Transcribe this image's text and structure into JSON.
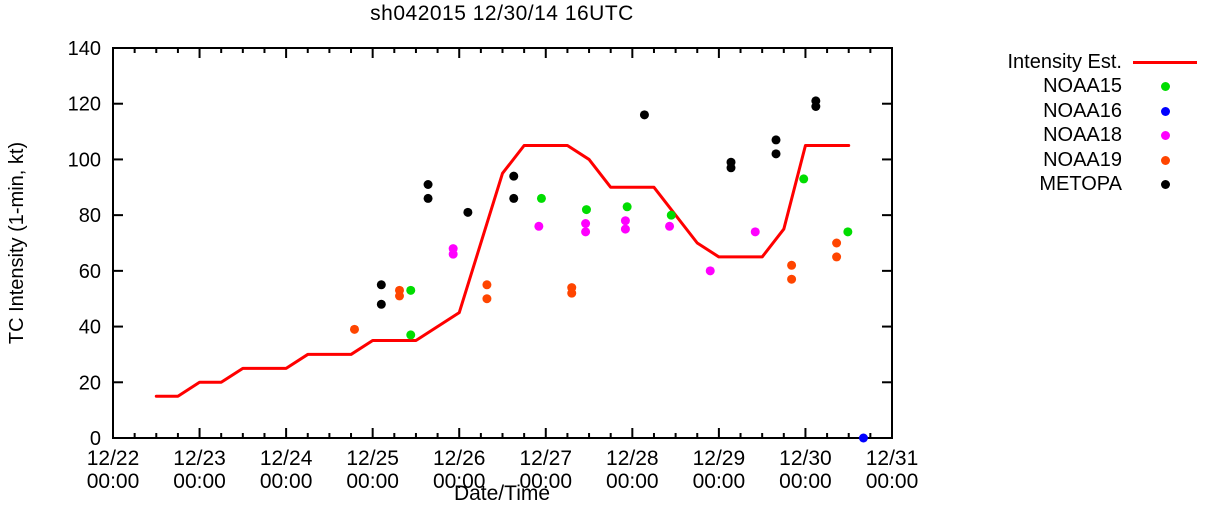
{
  "title": "sh042015 12/30/14 16UTC",
  "axes": {
    "x_label": "Date/Time",
    "y_label": "TC Intensity (1-min, kt)"
  },
  "legend": {
    "items": [
      {
        "label": "Intensity Est.",
        "color": "#ff0000",
        "marker": "line"
      },
      {
        "label": "NOAA15",
        "color": "#00dd00",
        "marker": "dot"
      },
      {
        "label": "NOAA16",
        "color": "#0000ff",
        "marker": "dot"
      },
      {
        "label": "NOAA18",
        "color": "#ff00ff",
        "marker": "dot"
      },
      {
        "label": "NOAA19",
        "color": "#ff4500",
        "marker": "dot"
      },
      {
        "label": "METOPA",
        "color": "#000000",
        "marker": "dot"
      }
    ]
  },
  "chart_data": {
    "type": "line+scatter",
    "title": "sh042015 12/30/14 16UTC",
    "xlabel": "Date/Time",
    "ylabel": "TC Intensity (1-min, kt)",
    "x_unit": "days since 12/22 00:00",
    "xlim": [
      0,
      9
    ],
    "ylim": [
      0,
      140
    ],
    "ytick_step": 20,
    "x_minor_per_day": 4,
    "grid": false,
    "legend_position": "outside-right",
    "x_ticks": [
      {
        "date": "12/22",
        "time": "00:00"
      },
      {
        "date": "12/23",
        "time": "00:00"
      },
      {
        "date": "12/24",
        "time": "00:00"
      },
      {
        "date": "12/25",
        "time": "00:00"
      },
      {
        "date": "12/26",
        "time": "00:00"
      },
      {
        "date": "12/27",
        "time": "00:00"
      },
      {
        "date": "12/28",
        "time": "00:00"
      },
      {
        "date": "12/29",
        "time": "00:00"
      },
      {
        "date": "12/30",
        "time": "00:00"
      },
      {
        "date": "12/31",
        "time": "00:00"
      }
    ],
    "line_series": {
      "name": "Intensity Est.",
      "color": "#ff0000",
      "points": [
        [
          0.5,
          15
        ],
        [
          0.75,
          15
        ],
        [
          1.0,
          20
        ],
        [
          1.25,
          20
        ],
        [
          1.5,
          25
        ],
        [
          2.0,
          25
        ],
        [
          2.25,
          30
        ],
        [
          2.75,
          30
        ],
        [
          3.0,
          35
        ],
        [
          3.5,
          35
        ],
        [
          4.0,
          45
        ],
        [
          4.5,
          95
        ],
        [
          4.75,
          105
        ],
        [
          5.25,
          105
        ],
        [
          5.5,
          100
        ],
        [
          5.75,
          90
        ],
        [
          6.25,
          90
        ],
        [
          6.75,
          70
        ],
        [
          7.0,
          65
        ],
        [
          7.5,
          65
        ],
        [
          7.75,
          75
        ],
        [
          8.0,
          105
        ],
        [
          8.5,
          105
        ]
      ]
    },
    "scatter_series": [
      {
        "name": "NOAA15",
        "color": "#00dd00",
        "points": [
          [
            3.44,
            53
          ],
          [
            3.44,
            37
          ],
          [
            4.95,
            86
          ],
          [
            5.47,
            82
          ],
          [
            5.94,
            83
          ],
          [
            6.45,
            80
          ],
          [
            7.98,
            93
          ],
          [
            8.49,
            74
          ]
        ]
      },
      {
        "name": "NOAA16",
        "color": "#0000ff",
        "points": [
          [
            8.67,
            0
          ]
        ]
      },
      {
        "name": "NOAA18",
        "color": "#ff00ff",
        "points": [
          [
            3.93,
            68
          ],
          [
            3.93,
            66
          ],
          [
            4.92,
            76
          ],
          [
            5.46,
            77
          ],
          [
            5.46,
            74
          ],
          [
            5.92,
            78
          ],
          [
            5.92,
            75
          ],
          [
            6.43,
            76
          ],
          [
            6.9,
            60
          ],
          [
            7.42,
            74
          ]
        ]
      },
      {
        "name": "NOAA19",
        "color": "#ff4500",
        "points": [
          [
            2.79,
            39
          ],
          [
            3.31,
            53
          ],
          [
            3.31,
            51
          ],
          [
            4.32,
            55
          ],
          [
            4.32,
            50
          ],
          [
            5.3,
            54
          ],
          [
            5.3,
            52
          ],
          [
            7.84,
            62
          ],
          [
            7.84,
            57
          ],
          [
            8.36,
            70
          ],
          [
            8.36,
            65
          ]
        ]
      },
      {
        "name": "METOPA",
        "color": "#000000",
        "points": [
          [
            3.1,
            55
          ],
          [
            3.1,
            48
          ],
          [
            3.64,
            91
          ],
          [
            3.64,
            86
          ],
          [
            4.1,
            81
          ],
          [
            4.63,
            94
          ],
          [
            4.63,
            86
          ],
          [
            6.14,
            116
          ],
          [
            7.14,
            99
          ],
          [
            7.14,
            97
          ],
          [
            7.66,
            107
          ],
          [
            7.66,
            102
          ],
          [
            8.12,
            121
          ],
          [
            8.12,
            119
          ]
        ]
      }
    ]
  }
}
